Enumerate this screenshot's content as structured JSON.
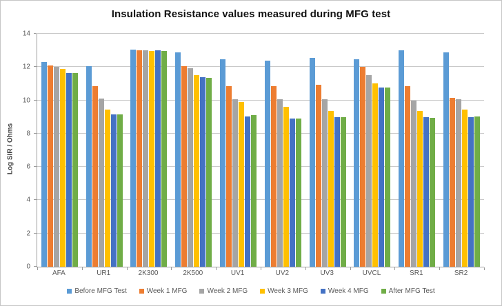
{
  "chart_data": {
    "type": "bar",
    "title": "Insulation Resistance values measured during MFG test",
    "xlabel": "",
    "ylabel": "Log SIR / Ohms",
    "ylim": [
      0,
      14
    ],
    "ytick_step": 2,
    "grid": true,
    "legend_position": "bottom",
    "categories": [
      "AFA",
      "UR1",
      "2K300",
      "2K500",
      "UV1",
      "UV2",
      "UV3",
      "UVCL",
      "SR1",
      "SR2"
    ],
    "series": [
      {
        "name": "Before MFG Test",
        "color": "#5B9BD5",
        "values": [
          12.3,
          12.05,
          13.05,
          12.9,
          12.45,
          12.4,
          12.55,
          12.45,
          13.0,
          12.9
        ]
      },
      {
        "name": "Week 1 MFG",
        "color": "#ED7D31",
        "values": [
          12.1,
          10.85,
          13.0,
          12.05,
          10.85,
          10.85,
          10.95,
          12.0,
          10.85,
          10.15
        ]
      },
      {
        "name": "Week 2 MFG",
        "color": "#A5A5A5",
        "values": [
          12.0,
          10.1,
          13.0,
          11.95,
          10.05,
          10.05,
          10.05,
          11.5,
          10.0,
          10.05
        ]
      },
      {
        "name": "Week 3 MFG",
        "color": "#FFC000",
        "values": [
          11.9,
          9.45,
          12.95,
          11.5,
          9.9,
          9.6,
          9.35,
          11.0,
          9.35,
          9.45
        ]
      },
      {
        "name": "Week 4 MFG",
        "color": "#4472C4",
        "values": [
          11.65,
          9.15,
          13.0,
          11.4,
          9.05,
          8.9,
          9.0,
          10.75,
          9.0,
          9.0
        ]
      },
      {
        "name": "After MFG Test",
        "color": "#70AD47",
        "values": [
          11.65,
          9.15,
          12.95,
          11.35,
          9.1,
          8.9,
          9.0,
          10.75,
          8.95,
          9.05
        ]
      }
    ],
    "axis_color": "#9b9b9b",
    "gridline_color": "#c9c9c9",
    "text_color": "#595959"
  }
}
